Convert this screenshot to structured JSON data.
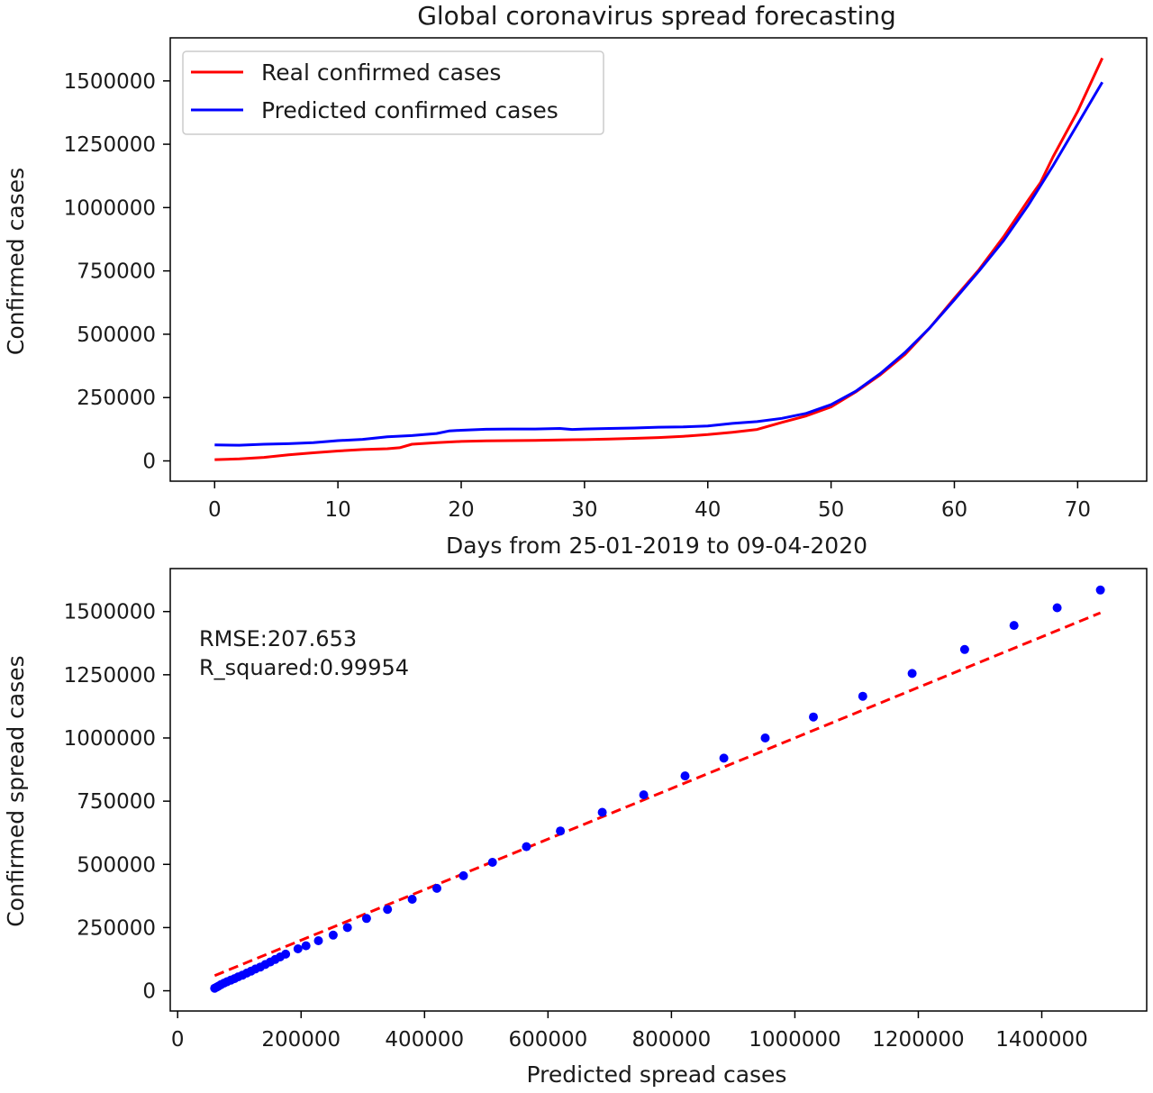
{
  "chart_data": [
    {
      "type": "line",
      "title": "Global coronavirus spread forecasting",
      "xlabel": "Days from 25-01-2019 to 09-04-2020",
      "ylabel": "Confirmed cases",
      "xlim": [
        -3.6,
        75.6
      ],
      "ylim": [
        -80000,
        1670000
      ],
      "xticks": [
        0,
        10,
        20,
        30,
        40,
        50,
        60,
        70
      ],
      "yticks": [
        0,
        250000,
        500000,
        750000,
        1000000,
        1250000,
        1500000
      ],
      "grid": false,
      "legend": "top-left",
      "series": [
        {
          "name": "Real confirmed cases",
          "color": "#ff0000",
          "x": [
            0,
            2,
            4,
            6,
            8,
            10,
            12,
            14,
            15,
            16,
            18,
            20,
            22,
            24,
            26,
            28,
            30,
            32,
            34,
            36,
            38,
            40,
            42,
            44,
            46,
            48,
            50,
            52,
            54,
            56,
            58,
            60,
            62,
            64,
            66,
            67,
            68,
            70,
            72
          ],
          "y": [
            5000,
            8000,
            14000,
            24000,
            32000,
            39000,
            45000,
            48000,
            52000,
            66000,
            72000,
            77000,
            79000,
            80000,
            81000,
            83000,
            84000,
            86000,
            89000,
            92000,
            97000,
            104000,
            113000,
            124000,
            152000,
            178000,
            213000,
            272000,
            340000,
            420000,
            525000,
            642000,
            755000,
            885000,
            1030000,
            1100000,
            1200000,
            1380000,
            1590000
          ]
        },
        {
          "name": "Predicted confirmed cases",
          "color": "#0000ff",
          "x": [
            0,
            2,
            4,
            6,
            8,
            10,
            12,
            14,
            16,
            18,
            19,
            20,
            22,
            24,
            26,
            28,
            29,
            30,
            32,
            34,
            36,
            38,
            40,
            42,
            44,
            46,
            48,
            50,
            52,
            54,
            56,
            58,
            60,
            62,
            64,
            66,
            68,
            70,
            72
          ],
          "y": [
            63000,
            62000,
            66000,
            68000,
            72000,
            80000,
            85000,
            95000,
            100000,
            108000,
            118000,
            121000,
            125000,
            126000,
            126000,
            128000,
            124000,
            126000,
            128000,
            130000,
            133000,
            134000,
            138000,
            148000,
            155000,
            168000,
            188000,
            222000,
            275000,
            345000,
            428000,
            525000,
            636000,
            750000,
            870000,
            1010000,
            1165000,
            1330000,
            1495000
          ]
        }
      ]
    },
    {
      "type": "scatter",
      "xlabel": "Predicted spread cases",
      "ylabel": "Confirmed spread cases",
      "xlim": [
        -12000,
        1570000
      ],
      "ylim": [
        -80000,
        1670000
      ],
      "xticks": [
        0,
        200000,
        400000,
        600000,
        800000,
        1000000,
        1200000,
        1400000
      ],
      "yticks": [
        0,
        250000,
        500000,
        750000,
        1000000,
        1250000,
        1500000
      ],
      "grid": false,
      "annotation": [
        "RMSE:207.653",
        "R_squared:0.99954"
      ],
      "reference_line": {
        "style": "dashed",
        "color": "#ff0000",
        "x": [
          60000,
          1495000
        ],
        "y": [
          60000,
          1495000
        ]
      },
      "series": [
        {
          "color": "#0000ff",
          "x": [
            60000,
            63000,
            66000,
            70000,
            75000,
            80000,
            86000,
            92000,
            98000,
            105000,
            112000,
            119000,
            126000,
            134000,
            142000,
            150000,
            158000,
            166000,
            175000,
            195000,
            208000,
            228000,
            252000,
            275000,
            306000,
            340000,
            380000,
            420000,
            463000,
            510000,
            565000,
            620000,
            688000,
            755000,
            822000,
            885000,
            952000,
            1030000,
            1110000,
            1190000,
            1275000,
            1355000,
            1425000,
            1495000
          ],
          "y": [
            10000,
            14000,
            18000,
            24000,
            30000,
            36000,
            42000,
            48000,
            55000,
            62000,
            70000,
            78000,
            86000,
            94000,
            104000,
            114000,
            124000,
            134000,
            145000,
            166000,
            178000,
            198000,
            220000,
            250000,
            286000,
            322000,
            362000,
            405000,
            455000,
            508000,
            570000,
            632000,
            706000,
            775000,
            850000,
            920000,
            1000000,
            1083000,
            1165000,
            1255000,
            1350000,
            1445000,
            1515000,
            1585000
          ]
        }
      ]
    }
  ]
}
